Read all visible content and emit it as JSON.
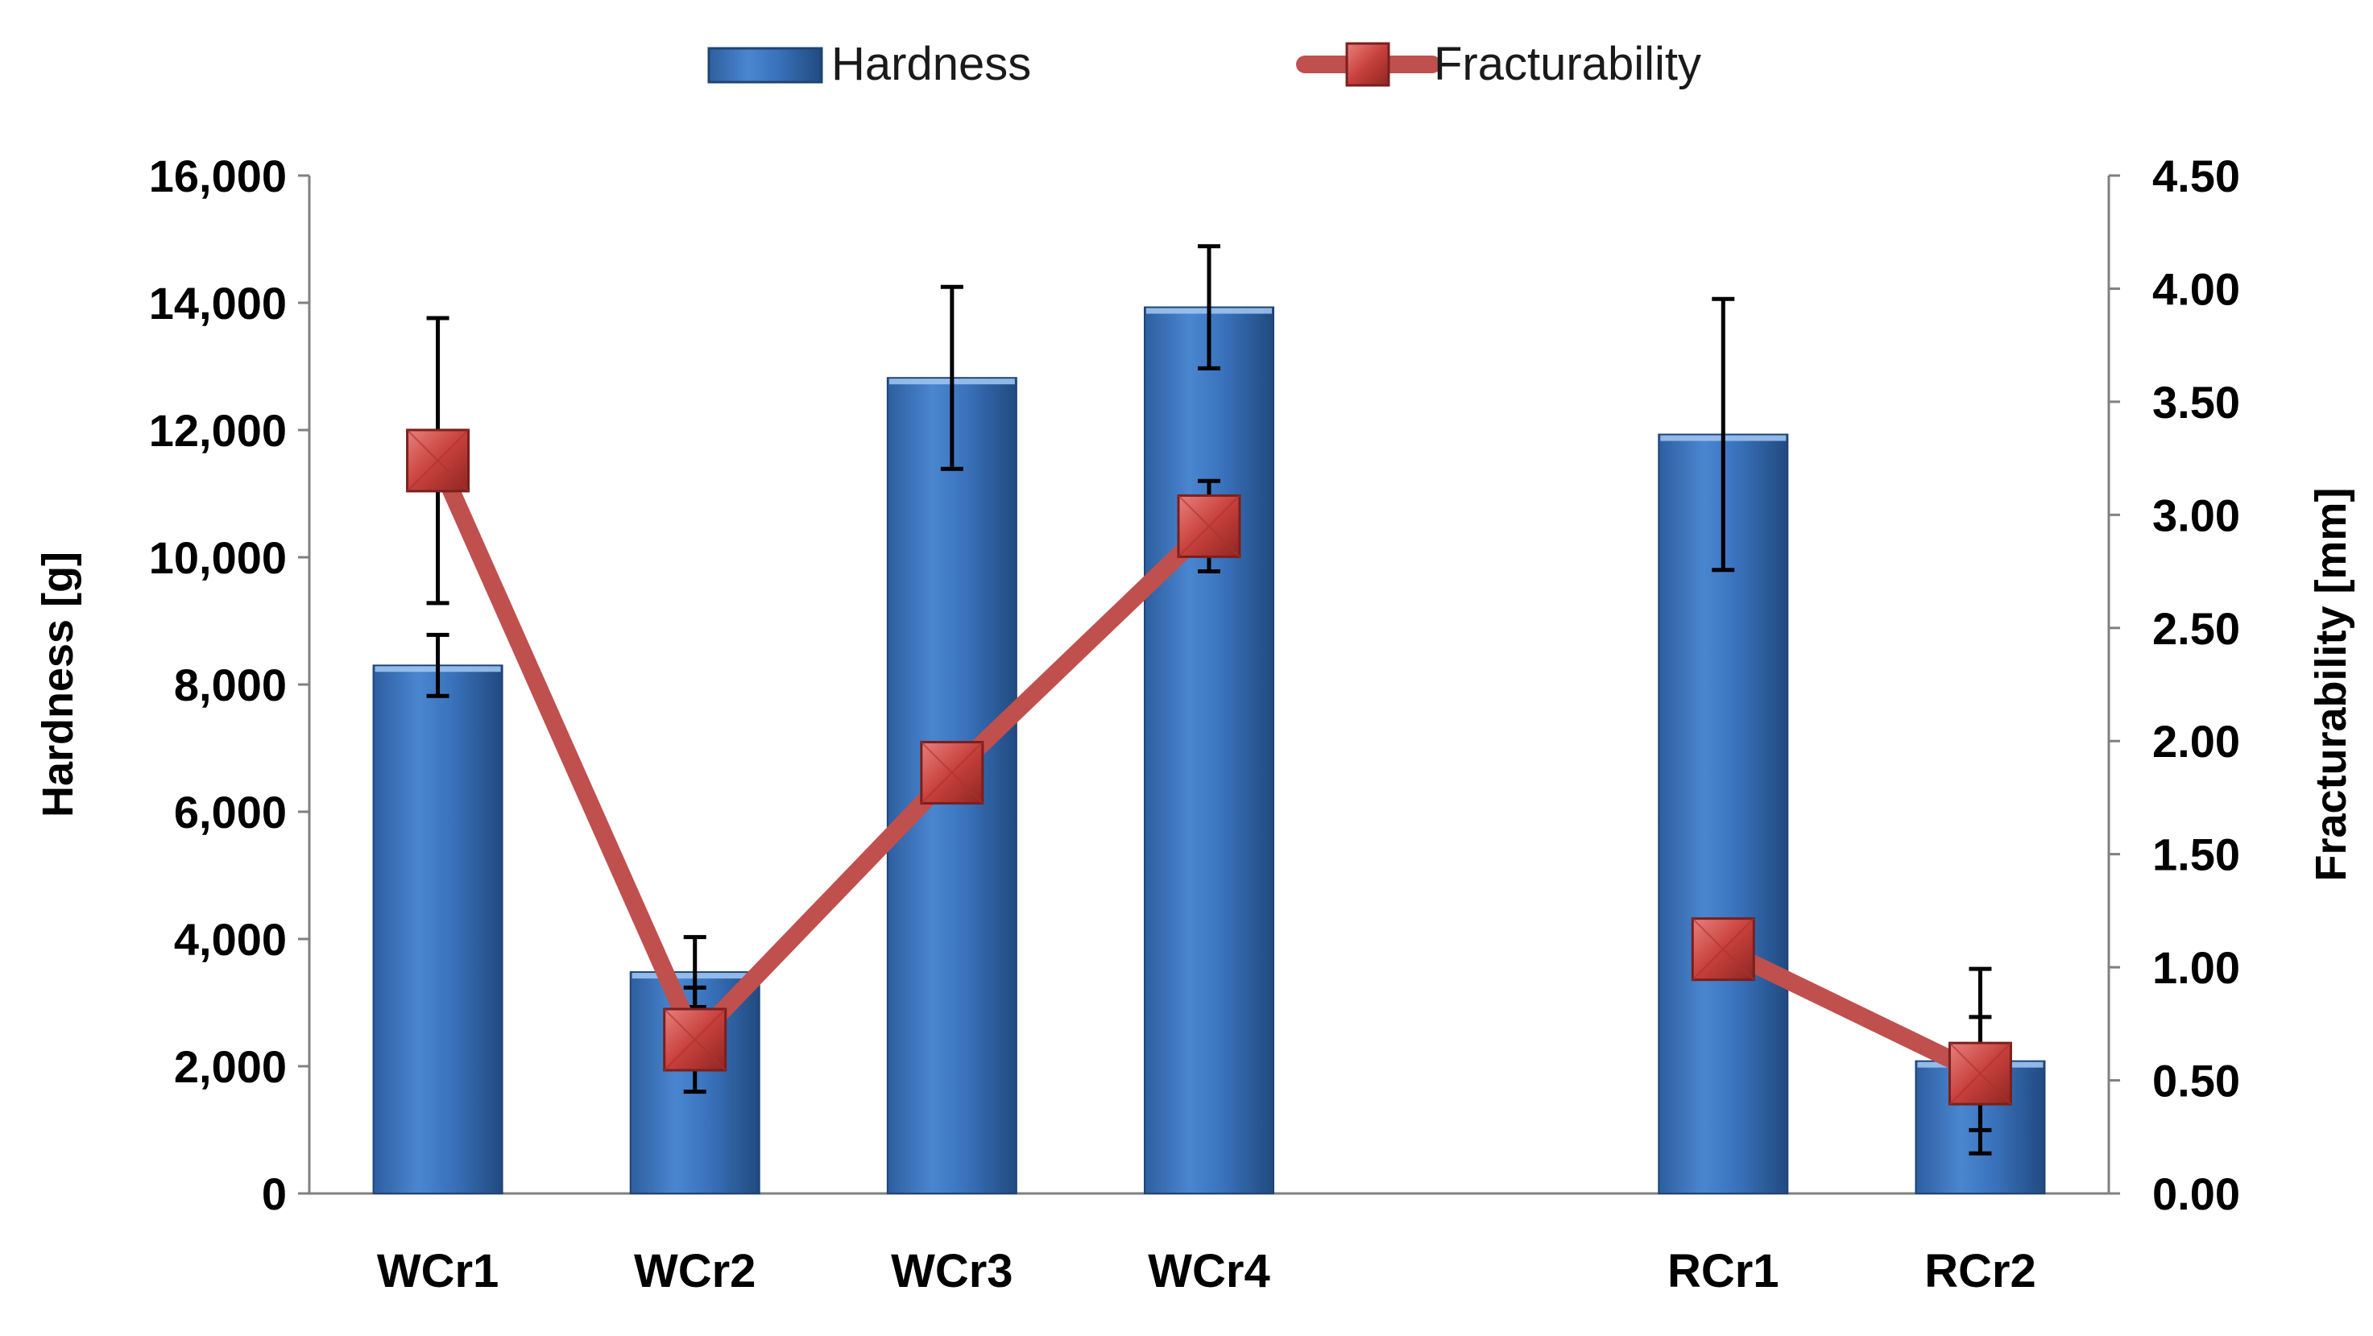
{
  "chart_data": {
    "type": "bar",
    "categories": [
      "WCr1",
      "WCr2",
      "WCr3",
      "WCr4",
      "",
      "RCr1",
      "RCr2"
    ],
    "series": [
      {
        "name": "Hardness",
        "kind": "bar",
        "axis": "left",
        "color": "#3b74c0",
        "values": [
          8300,
          3480,
          12820,
          13930,
          null,
          11930,
          2080
        ],
        "error": [
          480,
          550,
          1430,
          960,
          null,
          2130,
          1450
        ]
      },
      {
        "name": "Fracturability",
        "kind": "line",
        "axis": "right",
        "color": "#c0504d",
        "values": [
          3.24,
          0.68,
          1.86,
          2.95,
          null,
          1.08,
          0.53
        ],
        "error": [
          0.63,
          0.23,
          0.13,
          0.2,
          null,
          null,
          0.25
        ]
      }
    ],
    "ylabel": "Hardness [g]",
    "y2label": "Fracturability [mm]",
    "ylim": [
      0,
      16000
    ],
    "y2lim": [
      0,
      4.5
    ],
    "yticks": [
      "0",
      "2,000",
      "4,000",
      "6,000",
      "8,000",
      "10,000",
      "12,000",
      "14,000",
      "16,000"
    ],
    "y2ticks": [
      "0.00",
      "0.50",
      "1.00",
      "1.50",
      "2.00",
      "2.50",
      "3.00",
      "3.50",
      "4.00",
      "4.50"
    ],
    "legend": {
      "position": "top",
      "items": [
        {
          "label": "Hardness",
          "marker": "bar"
        },
        {
          "label": "Fracturability",
          "marker": "line-square"
        }
      ]
    },
    "grid": false
  }
}
